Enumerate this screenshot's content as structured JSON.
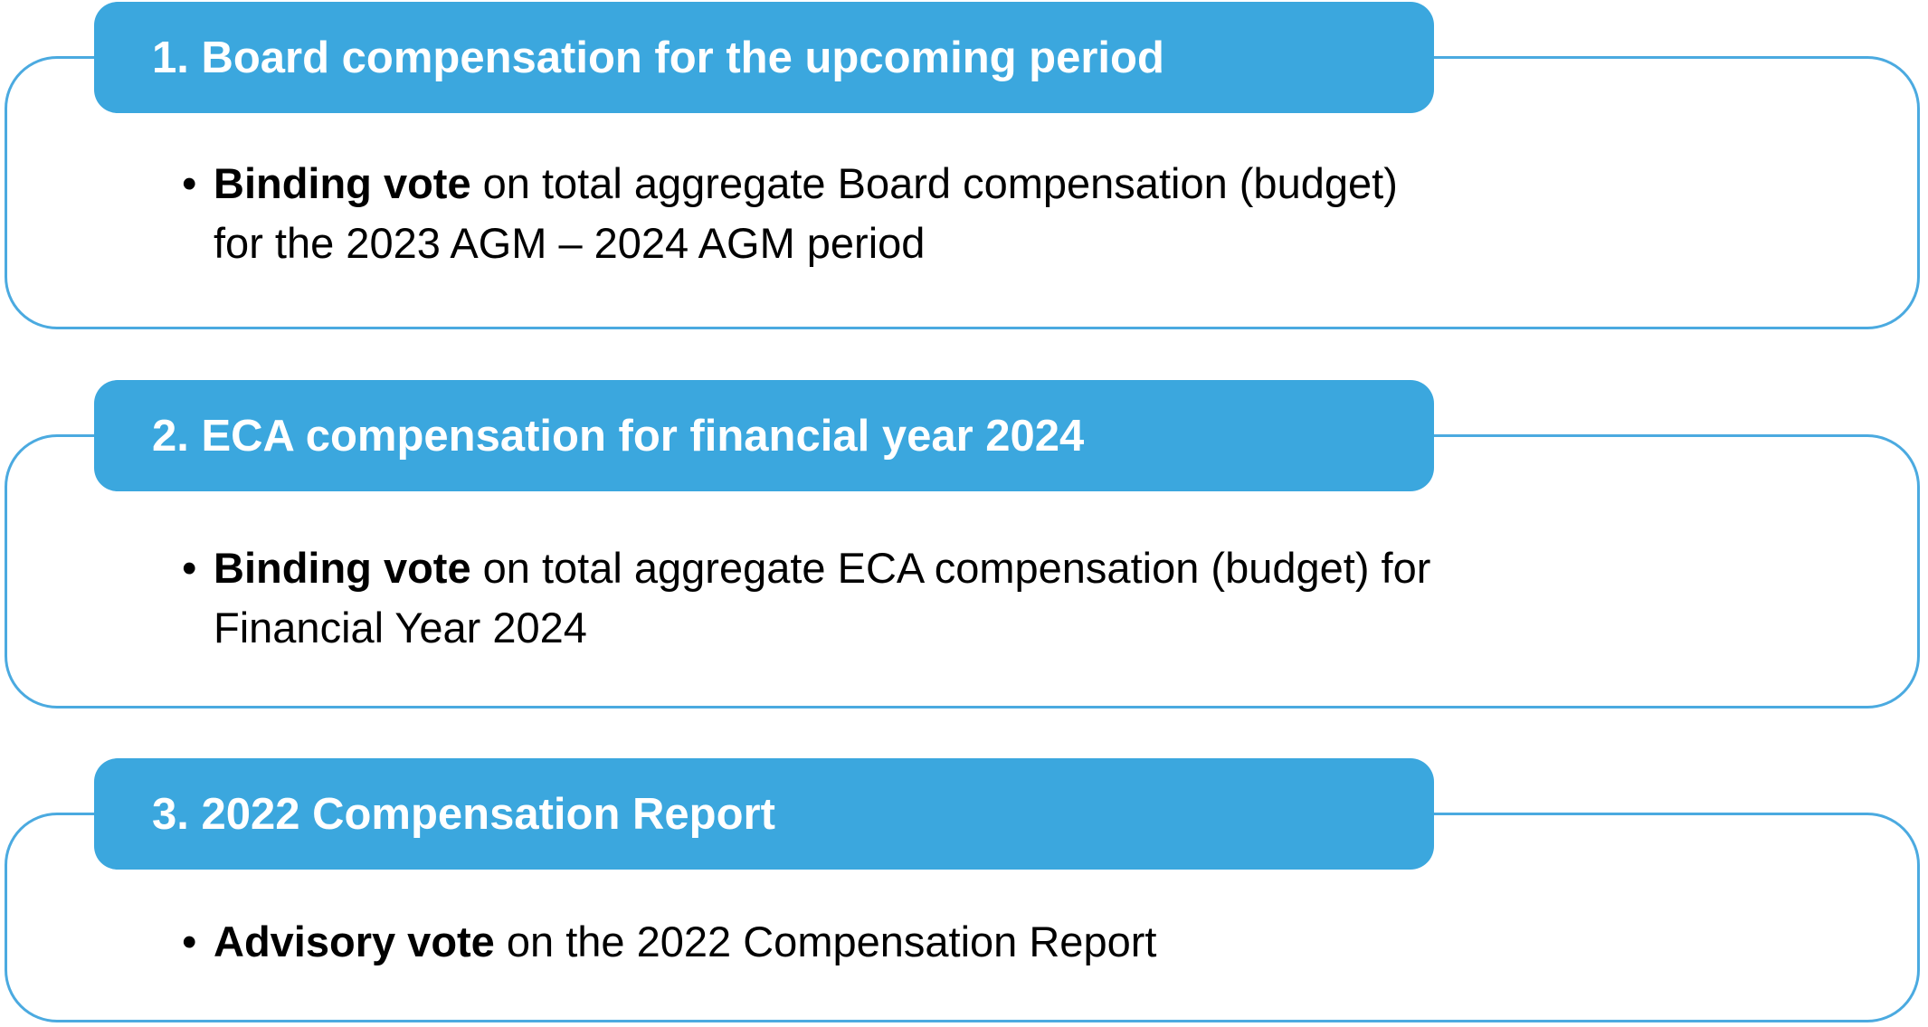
{
  "colors": {
    "tab_fill": "#3BA7DE",
    "box_border": "#4BAAE0",
    "header_text": "#FFFFFF",
    "body_text": "#000000"
  },
  "bullet_marker": "•",
  "sections": [
    {
      "header": "1. Board compensation for the upcoming period",
      "bullet": {
        "bold": "Binding vote",
        "rest": " on total aggregate Board compensation (budget)\nfor the 2023 AGM – 2024 AGM period"
      }
    },
    {
      "header": "2. ECA compensation for financial year 2024",
      "bullet": {
        "bold": "Binding vote",
        "rest": " on total aggregate ECA compensation (budget) for\nFinancial Year 2024"
      }
    },
    {
      "header": "3. 2022 Compensation Report",
      "bullet": {
        "bold": "Advisory vote",
        "rest": " on the 2022 Compensation Report"
      }
    }
  ]
}
